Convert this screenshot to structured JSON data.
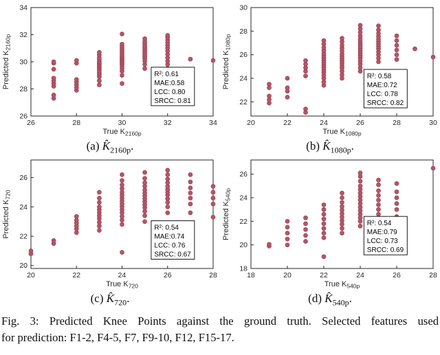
{
  "figure": {
    "caption_line1": "Fig. 3: Predicted Knee Points against the ground truth. Selected features used",
    "caption_line2": "for prediction: F1-2, F4-5, F7, F9-10, F12, F15-17."
  },
  "subcaptions": [
    {
      "index": "(a)",
      "symbol": "K̂",
      "sub": "2160p",
      "period": "."
    },
    {
      "index": "(b)",
      "symbol": "K̂",
      "sub": "1080p",
      "period": "."
    },
    {
      "index": "(c)",
      "symbol": "K̂",
      "sub": "720",
      "period": "."
    },
    {
      "index": "(d)",
      "symbol": "K̂",
      "sub": "540p",
      "period": "."
    }
  ],
  "style": {
    "point_fill": "#b4566a",
    "point_edge": "#96404f",
    "axis_color": "#262626",
    "stats_border": "#000000"
  },
  "chart_data": [
    {
      "type": "scatter",
      "xlabel": {
        "text": "True K",
        "sub": "2160p"
      },
      "ylabel": {
        "text": "Predicted K",
        "sub": "2160p"
      },
      "xlim": [
        26,
        34
      ],
      "xticks": [
        26,
        28,
        30,
        32,
        34
      ],
      "ylim": [
        26,
        34
      ],
      "yticks": [
        26,
        28,
        30,
        32,
        34
      ],
      "grid": false,
      "stats": [
        "R²: 0.61",
        "MAE:0.58",
        "LCC: 0.80",
        "SRCC: 0.81"
      ],
      "stats_box": {
        "fx": 0.66,
        "fy": 0.55
      },
      "points": [
        [
          27,
          27.3
        ],
        [
          27,
          27.55
        ],
        [
          27,
          28.2
        ],
        [
          27,
          28.4
        ],
        [
          27,
          28.6
        ],
        [
          27,
          28.8
        ],
        [
          27,
          29.45
        ],
        [
          27,
          29.9
        ],
        [
          27,
          30.0
        ],
        [
          28,
          27.9
        ],
        [
          28,
          28.1
        ],
        [
          28,
          28.3
        ],
        [
          28,
          28.5
        ],
        [
          28,
          28.7
        ],
        [
          28,
          29.9
        ],
        [
          28,
          30.1
        ],
        [
          29,
          28.3
        ],
        [
          29,
          28.6
        ],
        [
          29,
          28.9
        ],
        [
          29,
          29.05
        ],
        [
          29,
          29.2
        ],
        [
          29,
          29.35
        ],
        [
          29,
          29.5
        ],
        [
          29,
          29.6
        ],
        [
          29,
          29.7
        ],
        [
          29,
          29.8
        ],
        [
          29,
          29.9
        ],
        [
          29,
          30.0
        ],
        [
          29,
          30.15
        ],
        [
          29,
          30.3
        ],
        [
          29,
          30.5
        ],
        [
          29,
          30.7
        ],
        [
          30,
          28.4
        ],
        [
          30,
          29.0
        ],
        [
          30,
          29.3
        ],
        [
          30,
          29.5
        ],
        [
          30,
          29.65
        ],
        [
          30,
          29.8
        ],
        [
          30,
          29.9
        ],
        [
          30,
          30.0
        ],
        [
          30,
          30.1
        ],
        [
          30,
          30.2
        ],
        [
          30,
          30.3
        ],
        [
          30,
          30.4
        ],
        [
          30,
          30.55
        ],
        [
          30,
          30.7
        ],
        [
          30,
          30.85
        ],
        [
          30,
          31.0
        ],
        [
          30,
          31.15
        ],
        [
          30,
          31.3
        ],
        [
          30,
          32.05
        ],
        [
          31,
          29.5
        ],
        [
          31,
          29.8
        ],
        [
          31,
          30.05
        ],
        [
          31,
          30.25
        ],
        [
          31,
          30.4
        ],
        [
          31,
          30.55
        ],
        [
          31,
          30.7
        ],
        [
          31,
          30.85
        ],
        [
          31,
          31.0
        ],
        [
          31,
          31.1
        ],
        [
          31,
          31.2
        ],
        [
          31,
          31.35
        ],
        [
          31,
          31.5
        ],
        [
          31,
          31.7
        ],
        [
          32,
          28.45
        ],
        [
          32,
          28.65
        ],
        [
          32,
          29.5
        ],
        [
          32,
          29.8
        ],
        [
          32,
          30.05
        ],
        [
          32,
          30.3
        ],
        [
          32,
          30.55
        ],
        [
          32,
          30.8
        ],
        [
          32,
          31.0
        ],
        [
          32,
          31.2
        ],
        [
          32,
          31.4
        ],
        [
          32,
          31.6
        ],
        [
          32,
          31.8
        ],
        [
          32,
          31.95
        ],
        [
          33,
          30.2
        ],
        [
          34,
          30.1
        ]
      ]
    },
    {
      "type": "scatter",
      "xlabel": {
        "text": "True K",
        "sub": "1080p"
      },
      "ylabel": {
        "text": "Predicted K",
        "sub": "1080p"
      },
      "xlim": [
        20,
        30
      ],
      "xticks": [
        20,
        22,
        24,
        26,
        28,
        30
      ],
      "ylim": [
        20.8,
        30
      ],
      "yticks": [
        22,
        24,
        26,
        28,
        30
      ],
      "grid": false,
      "stats": [
        "R²: 0.58",
        "MAE:0.72",
        "LCC: 0.78",
        "SRCC: 0.82"
      ],
      "stats_box": {
        "fx": 0.62,
        "fy": 0.57
      },
      "points": [
        [
          21,
          21.9
        ],
        [
          21,
          22.2
        ],
        [
          21,
          22.5
        ],
        [
          21,
          23.2
        ],
        [
          21,
          23.5
        ],
        [
          22,
          22.4
        ],
        [
          22,
          22.9
        ],
        [
          22,
          23.2
        ],
        [
          22,
          24.0
        ],
        [
          23,
          21.1
        ],
        [
          23,
          21.4
        ],
        [
          23,
          24.2
        ],
        [
          23,
          24.6
        ],
        [
          23,
          24.9
        ],
        [
          23,
          25.2
        ],
        [
          23,
          25.5
        ],
        [
          24,
          23.4
        ],
        [
          24,
          23.7
        ],
        [
          24,
          24.0
        ],
        [
          24,
          24.25
        ],
        [
          24,
          24.5
        ],
        [
          24,
          24.7
        ],
        [
          24,
          24.9
        ],
        [
          24,
          25.1
        ],
        [
          24,
          25.3
        ],
        [
          24,
          25.5
        ],
        [
          24,
          25.7
        ],
        [
          24,
          25.9
        ],
        [
          24,
          26.1
        ],
        [
          24,
          26.35
        ],
        [
          24,
          26.6
        ],
        [
          24,
          26.9
        ],
        [
          24,
          27.2
        ],
        [
          25,
          24.0
        ],
        [
          25,
          24.3
        ],
        [
          25,
          24.6
        ],
        [
          25,
          24.85
        ],
        [
          25,
          25.05
        ],
        [
          25,
          25.25
        ],
        [
          25,
          25.45
        ],
        [
          25,
          25.65
        ],
        [
          25,
          25.85
        ],
        [
          25,
          26.05
        ],
        [
          25,
          26.3
        ],
        [
          25,
          26.55
        ],
        [
          25,
          26.8
        ],
        [
          25,
          27.1
        ],
        [
          25,
          27.4
        ],
        [
          26,
          24.6
        ],
        [
          26,
          24.9
        ],
        [
          26,
          25.2
        ],
        [
          26,
          25.45
        ],
        [
          26,
          25.7
        ],
        [
          26,
          25.9
        ],
        [
          26,
          26.1
        ],
        [
          26,
          26.3
        ],
        [
          26,
          26.5
        ],
        [
          26,
          26.7
        ],
        [
          26,
          26.9
        ],
        [
          26,
          27.1
        ],
        [
          26,
          27.35
        ],
        [
          26,
          27.6
        ],
        [
          26,
          27.9
        ],
        [
          26,
          28.2
        ],
        [
          26,
          28.5
        ],
        [
          27,
          25.4
        ],
        [
          27,
          25.7
        ],
        [
          27,
          26.0
        ],
        [
          27,
          26.25
        ],
        [
          27,
          26.5
        ],
        [
          27,
          26.7
        ],
        [
          27,
          26.9
        ],
        [
          27,
          27.1
        ],
        [
          27,
          27.3
        ],
        [
          27,
          27.55
        ],
        [
          27,
          27.8
        ],
        [
          27,
          28.1
        ],
        [
          27,
          28.45
        ],
        [
          28,
          24.3
        ],
        [
          28,
          25.6
        ],
        [
          28,
          26.0
        ],
        [
          28,
          26.4
        ],
        [
          28,
          26.8
        ],
        [
          28,
          27.2
        ],
        [
          28,
          27.6
        ],
        [
          29,
          26.5
        ],
        [
          30,
          25.8
        ]
      ]
    },
    {
      "type": "scatter",
      "xlabel": {
        "text": "True K",
        "sub": "720"
      },
      "ylabel": {
        "text": "Predicted K",
        "sub": "720"
      },
      "xlim": [
        20,
        28
      ],
      "xticks": [
        20,
        22,
        24,
        26,
        28
      ],
      "ylim": [
        19.8,
        27.2
      ],
      "yticks": [
        20,
        22,
        24,
        26
      ],
      "grid": false,
      "stats": [
        "R²: 0.54",
        "MAE:0.74",
        "LCC: 0.76",
        "SRCC: 0.67"
      ],
      "stats_box": {
        "fx": 0.66,
        "fy": 0.56
      },
      "points": [
        [
          20,
          20.8
        ],
        [
          20,
          21.0
        ],
        [
          21,
          21.5
        ],
        [
          21,
          21.7
        ],
        [
          22,
          22.25
        ],
        [
          22,
          22.5
        ],
        [
          22,
          22.7
        ],
        [
          22,
          22.9
        ],
        [
          22,
          23.1
        ],
        [
          22,
          23.35
        ],
        [
          23,
          22.4
        ],
        [
          23,
          22.7
        ],
        [
          23,
          22.95
        ],
        [
          23,
          23.2
        ],
        [
          23,
          23.4
        ],
        [
          23,
          23.6
        ],
        [
          23,
          23.8
        ],
        [
          23,
          24.0
        ],
        [
          23,
          24.3
        ],
        [
          23,
          24.6
        ],
        [
          23,
          25.0
        ],
        [
          24,
          20.9
        ],
        [
          24,
          22.8
        ],
        [
          24,
          23.1
        ],
        [
          24,
          23.35
        ],
        [
          24,
          23.6
        ],
        [
          24,
          23.8
        ],
        [
          24,
          24.0
        ],
        [
          24,
          24.2
        ],
        [
          24,
          24.4
        ],
        [
          24,
          24.6
        ],
        [
          24,
          24.8
        ],
        [
          24,
          25.0
        ],
        [
          24,
          25.25
        ],
        [
          24,
          25.5
        ],
        [
          24,
          25.8
        ],
        [
          24,
          26.2
        ],
        [
          25,
          23.0
        ],
        [
          25,
          23.4
        ],
        [
          25,
          23.7
        ],
        [
          25,
          23.95
        ],
        [
          25,
          24.15
        ],
        [
          25,
          24.35
        ],
        [
          25,
          24.55
        ],
        [
          25,
          24.75
        ],
        [
          25,
          24.95
        ],
        [
          25,
          25.15
        ],
        [
          25,
          25.4
        ],
        [
          25,
          25.65
        ],
        [
          25,
          25.95
        ],
        [
          25,
          26.35
        ],
        [
          26,
          23.6
        ],
        [
          26,
          24.0
        ],
        [
          26,
          24.3
        ],
        [
          26,
          24.55
        ],
        [
          26,
          24.8
        ],
        [
          26,
          25.0
        ],
        [
          26,
          25.2
        ],
        [
          26,
          25.4
        ],
        [
          26,
          25.65
        ],
        [
          26,
          25.9
        ],
        [
          26,
          26.2
        ],
        [
          26,
          26.5
        ],
        [
          27,
          23.6
        ],
        [
          27,
          24.2
        ],
        [
          27,
          24.6
        ],
        [
          27,
          24.95
        ],
        [
          27,
          25.3
        ],
        [
          27,
          25.7
        ],
        [
          27,
          26.2
        ],
        [
          28,
          23.3
        ],
        [
          28,
          24.2
        ],
        [
          28,
          24.6
        ],
        [
          28,
          25.0
        ],
        [
          28,
          25.4
        ]
      ]
    },
    {
      "type": "scatter",
      "xlabel": {
        "text": "True K",
        "sub": "540p"
      },
      "ylabel": {
        "text": "Predicted K",
        "sub": "540p"
      },
      "xlim": [
        18,
        28
      ],
      "xticks": [
        18,
        20,
        22,
        24,
        26,
        28
      ],
      "ylim": [
        18,
        27.2
      ],
      "yticks": [
        18,
        20,
        22,
        24,
        26
      ],
      "grid": false,
      "stats": [
        "R²: 0.54",
        "MAE:0.79",
        "LCC: 0.73",
        "SRCC: 0.69"
      ],
      "stats_box": {
        "fx": 0.62,
        "fy": 0.52
      },
      "points": [
        [
          19,
          19.9
        ],
        [
          19,
          20.05
        ],
        [
          20,
          20.0
        ],
        [
          20,
          20.5
        ],
        [
          20,
          21.0
        ],
        [
          20,
          21.5
        ],
        [
          20,
          22.0
        ],
        [
          21,
          20.3
        ],
        [
          21,
          20.8
        ],
        [
          21,
          21.3
        ],
        [
          21,
          21.8
        ],
        [
          21,
          22.3
        ],
        [
          22,
          19.0
        ],
        [
          22,
          20.6
        ],
        [
          22,
          21.0
        ],
        [
          22,
          21.4
        ],
        [
          22,
          21.8
        ],
        [
          22,
          22.2
        ],
        [
          22,
          22.6
        ],
        [
          22,
          23.0
        ],
        [
          22,
          23.4
        ],
        [
          23,
          21.0
        ],
        [
          23,
          21.4
        ],
        [
          23,
          21.75
        ],
        [
          23,
          22.05
        ],
        [
          23,
          22.35
        ],
        [
          23,
          22.65
        ],
        [
          23,
          22.95
        ],
        [
          23,
          23.25
        ],
        [
          23,
          23.6
        ],
        [
          23,
          24.0
        ],
        [
          23,
          24.4
        ],
        [
          24,
          21.6
        ],
        [
          24,
          22.0
        ],
        [
          24,
          22.3
        ],
        [
          24,
          22.6
        ],
        [
          24,
          22.9
        ],
        [
          24,
          23.2
        ],
        [
          24,
          23.5
        ],
        [
          24,
          23.8
        ],
        [
          24,
          24.1
        ],
        [
          24,
          24.4
        ],
        [
          24,
          24.7
        ],
        [
          24,
          25.0
        ],
        [
          24,
          25.4
        ],
        [
          24,
          25.8
        ],
        [
          24,
          26.1
        ],
        [
          25,
          22.1
        ],
        [
          25,
          22.6
        ],
        [
          25,
          23.0
        ],
        [
          25,
          23.4
        ],
        [
          25,
          23.8
        ],
        [
          25,
          24.2
        ],
        [
          25,
          24.6
        ],
        [
          25,
          25.1
        ],
        [
          25,
          25.5
        ],
        [
          26,
          22.4
        ],
        [
          26,
          23.0
        ],
        [
          26,
          23.5
        ],
        [
          26,
          24.0
        ],
        [
          26,
          24.5
        ],
        [
          26,
          25.2
        ],
        [
          28,
          26.5
        ]
      ]
    }
  ]
}
